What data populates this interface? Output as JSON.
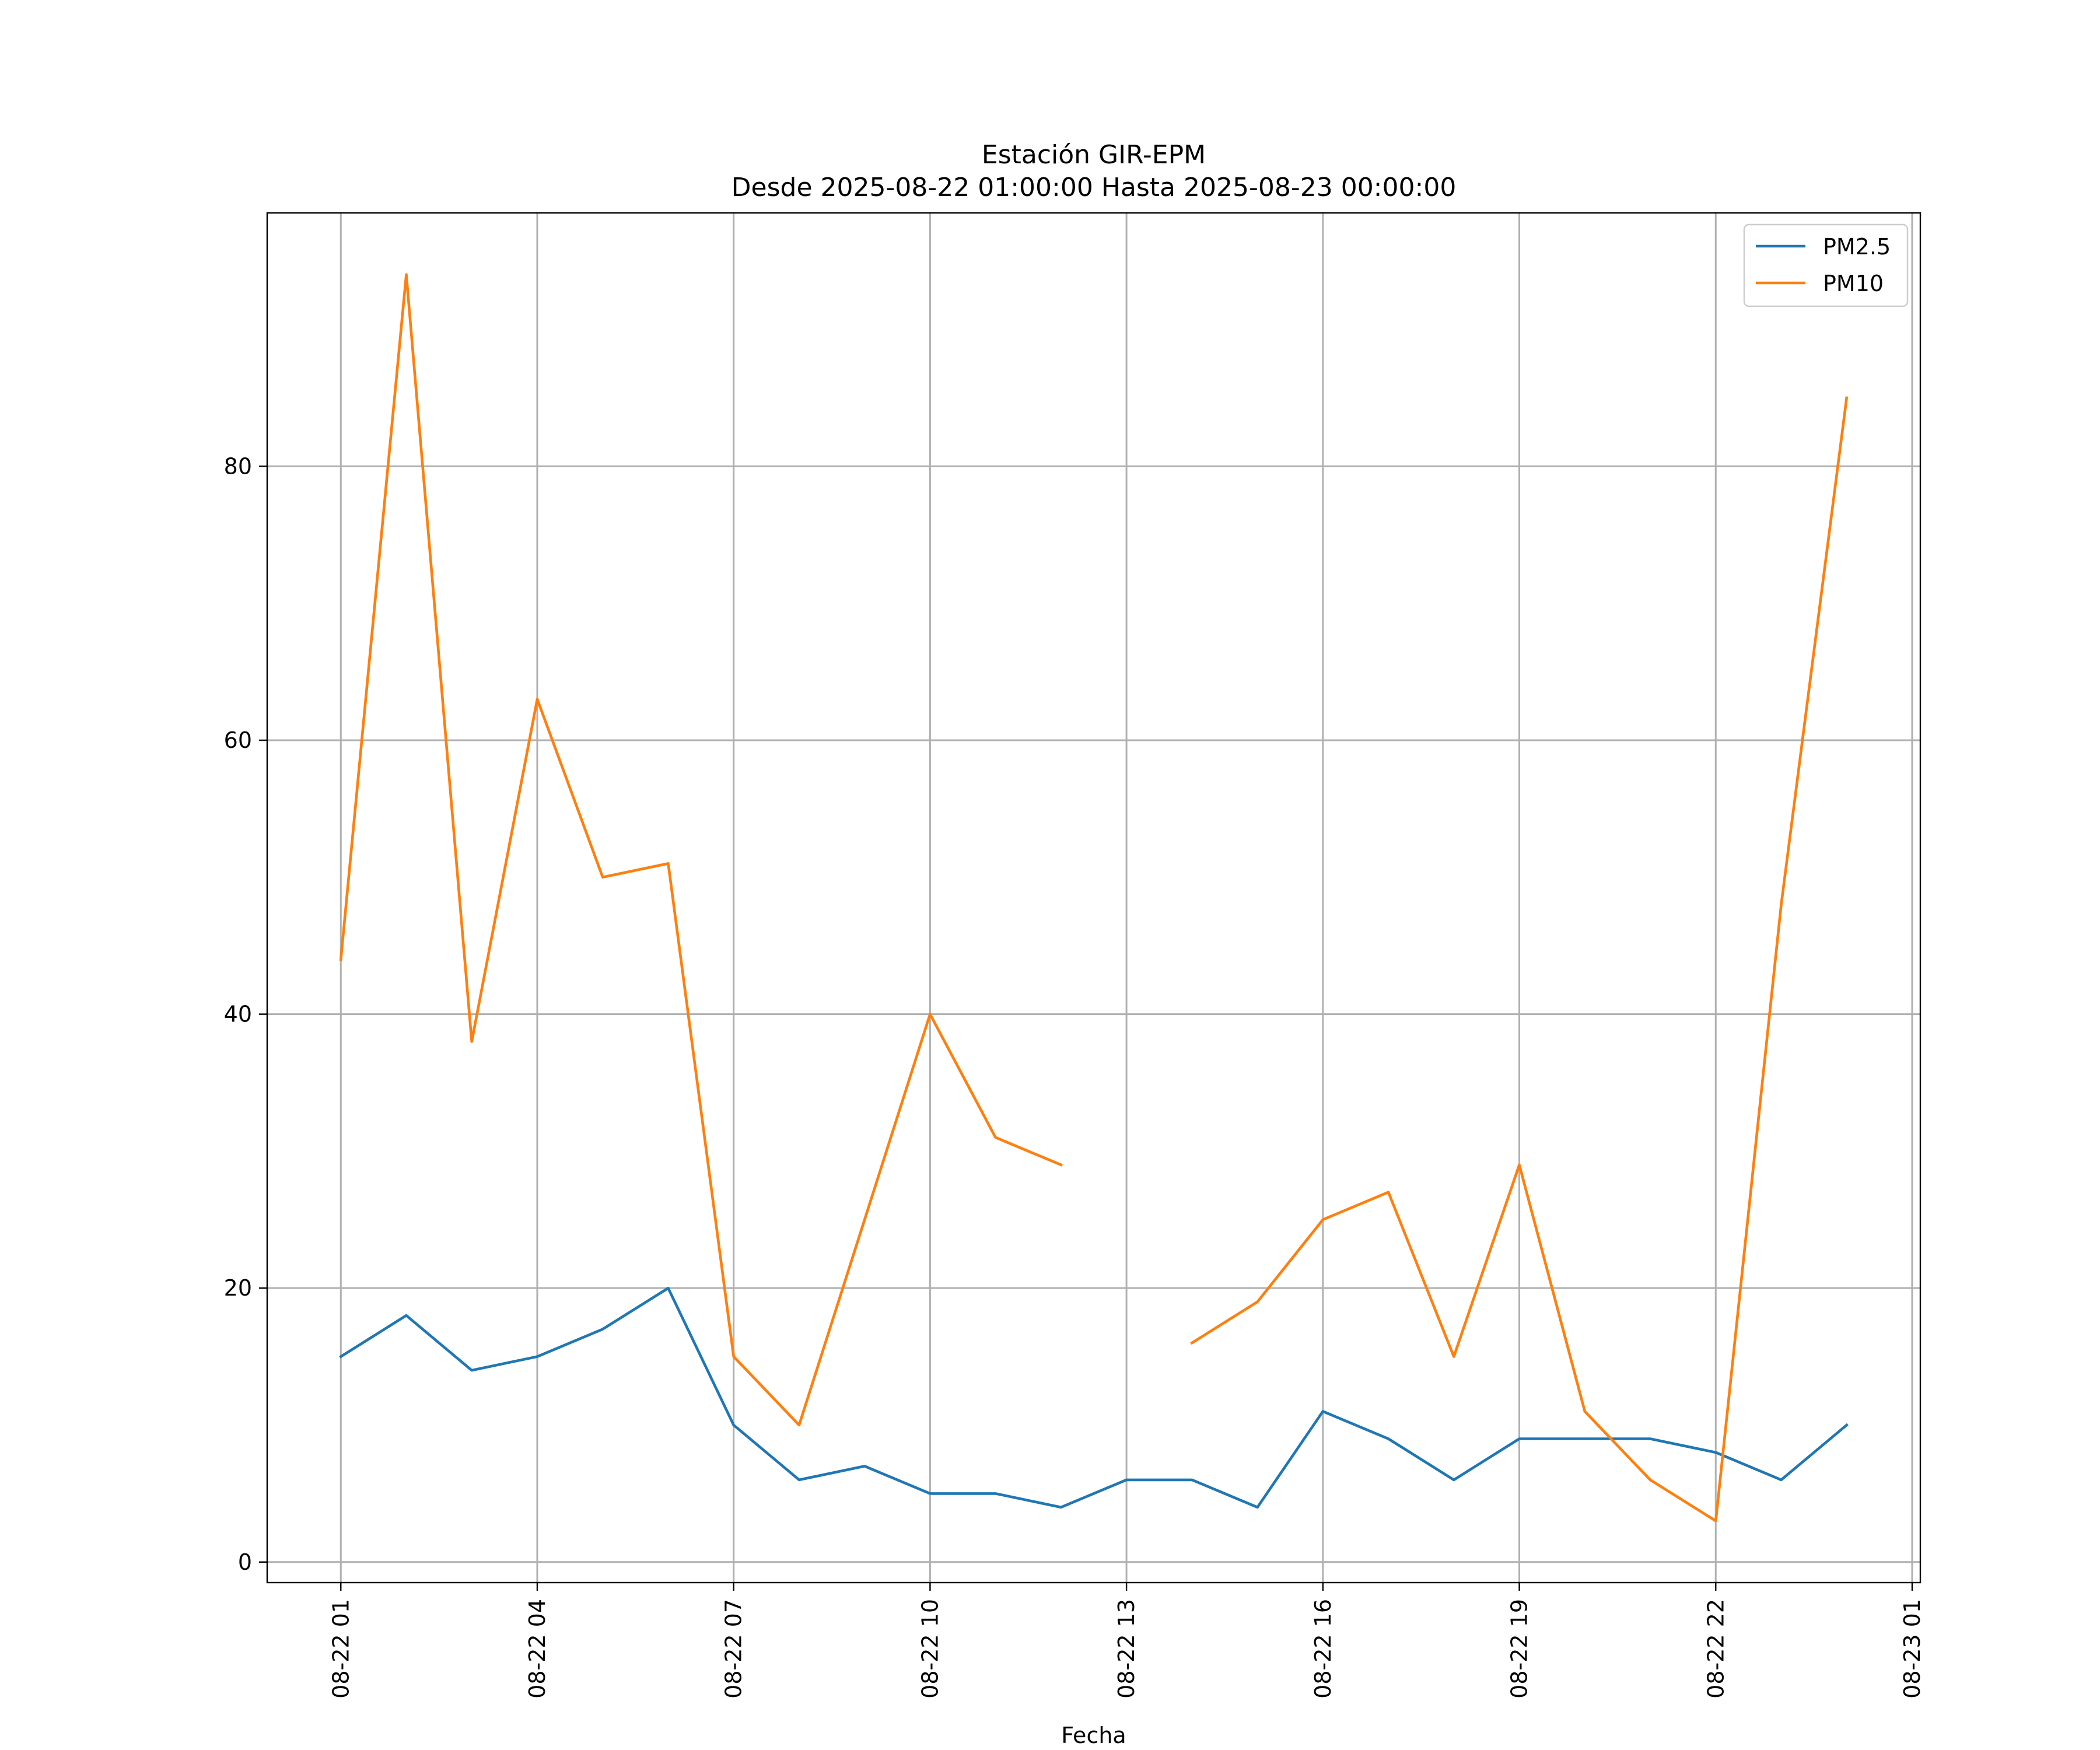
{
  "chart_data": {
    "type": "line",
    "title": "Estación GIR-EPM",
    "subtitle": "Desde 2025-08-22 01:00:00 Hasta 2025-08-23 00:00:00",
    "xlabel": "Fecha",
    "ylabel": "",
    "grid": true,
    "legend_position": "top-right",
    "x_hours": [
      1,
      2,
      3,
      4,
      5,
      6,
      7,
      8,
      9,
      10,
      11,
      12,
      13,
      14,
      15,
      16,
      17,
      18,
      19,
      20,
      21,
      22,
      23,
      24
    ],
    "xlim": [
      -0.125,
      25.125
    ],
    "ylim": [
      -1.5,
      98.5
    ],
    "x_ticks": [
      {
        "x": 1,
        "label": "08-22 01"
      },
      {
        "x": 4,
        "label": "08-22 04"
      },
      {
        "x": 7,
        "label": "08-22 07"
      },
      {
        "x": 10,
        "label": "08-22 10"
      },
      {
        "x": 13,
        "label": "08-22 13"
      },
      {
        "x": 16,
        "label": "08-22 16"
      },
      {
        "x": 19,
        "label": "08-22 19"
      },
      {
        "x": 22,
        "label": "08-22 22"
      },
      {
        "x": 25,
        "label": "08-23 01"
      }
    ],
    "y_ticks": [
      {
        "y": 0,
        "label": "0"
      },
      {
        "y": 20,
        "label": "20"
      },
      {
        "y": 40,
        "label": "40"
      },
      {
        "y": 60,
        "label": "60"
      },
      {
        "y": 80,
        "label": "80"
      }
    ],
    "series": [
      {
        "name": "PM2.5",
        "color": "#1f77b4",
        "values": [
          15,
          18,
          14,
          15,
          17,
          20,
          10,
          6,
          7,
          5,
          5,
          4,
          6,
          6,
          4,
          11,
          9,
          6,
          9,
          9,
          9,
          8,
          6,
          10
        ]
      },
      {
        "name": "PM10",
        "color": "#ff7f0e",
        "values": [
          44,
          94,
          38,
          63,
          50,
          51,
          15,
          10,
          25,
          40,
          31,
          29,
          null,
          16,
          19,
          25,
          27,
          15,
          29,
          11,
          6,
          3,
          48,
          85
        ]
      }
    ]
  }
}
